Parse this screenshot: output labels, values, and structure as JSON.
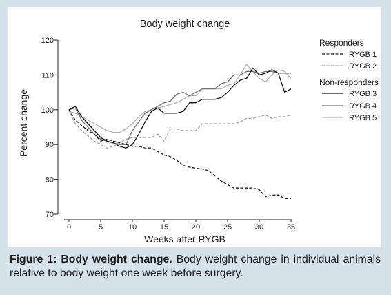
{
  "colors": {
    "page_background": "#d6e2ea",
    "panel_background": "#ffffff"
  },
  "figure": {
    "caption_label": "Figure 1: Body weight change.",
    "caption_text": "Body weight change in individual animals relative to body weight one week before surgery."
  },
  "chart_data": {
    "type": "line",
    "title": "Body weight change",
    "xlabel": "Weeks after RYGB",
    "ylabel": "Percent change",
    "xlim": [
      0,
      35
    ],
    "ylim": [
      70,
      120
    ],
    "x_ticks": [
      0,
      5,
      10,
      15,
      20,
      25,
      30,
      35
    ],
    "y_ticks": [
      70,
      80,
      90,
      100,
      110,
      120
    ],
    "grid": false,
    "legend_position": "right",
    "legend_groups": [
      {
        "title": "Responders",
        "members": [
          0,
          1
        ]
      },
      {
        "title": "Non-responders",
        "members": [
          2,
          3,
          4
        ]
      }
    ],
    "x": [
      0,
      1,
      2,
      3,
      4,
      5,
      6,
      7,
      8,
      9,
      10,
      11,
      12,
      13,
      14,
      15,
      16,
      17,
      18,
      19,
      20,
      21,
      22,
      23,
      24,
      25,
      26,
      27,
      28,
      29,
      30,
      31,
      32,
      33,
      34,
      35
    ],
    "series": [
      {
        "name": "RYGB 1",
        "color": "#1c1c1c",
        "dashed": true,
        "values": [
          100,
          97,
          95.5,
          94,
          93,
          91,
          91.5,
          91,
          90.5,
          90,
          89.5,
          89.5,
          89,
          89,
          88,
          87,
          86.5,
          85.5,
          84,
          83.5,
          83.2,
          83,
          82.5,
          81,
          79.5,
          78.5,
          77.5,
          77.5,
          77.5,
          77.5,
          77,
          75,
          75.5,
          75.5,
          74.5,
          74.5
        ]
      },
      {
        "name": "RYGB 2",
        "color": "#a0a0a0",
        "dashed": true,
        "values": [
          100,
          96,
          94,
          92.5,
          91,
          90,
          89,
          89.5,
          90.5,
          91.5,
          92,
          92,
          92,
          92,
          93,
          91,
          94.5,
          94.5,
          94,
          94,
          94,
          96,
          96,
          96,
          96,
          96,
          96,
          96.5,
          97.5,
          97.5,
          98,
          98.5,
          97.5,
          98,
          98,
          98.5
        ]
      },
      {
        "name": "RYGB 3",
        "color": "#111111",
        "dashed": false,
        "values": [
          100,
          101,
          98,
          96,
          94,
          92,
          91,
          90.5,
          89.5,
          89,
          90,
          93,
          96.5,
          99.5,
          100.5,
          99,
          99,
          99,
          99.5,
          102,
          102,
          103,
          103,
          103,
          103.5,
          105,
          107,
          108.5,
          109,
          112,
          110,
          110.5,
          111.5,
          110.5,
          105,
          106
        ]
      },
      {
        "name": "RYGB 4",
        "color": "#707070",
        "dashed": false,
        "values": [
          100,
          100.5,
          97,
          95,
          93,
          91.5,
          91,
          90.5,
          90,
          90,
          94,
          96.5,
          99,
          100,
          101,
          102,
          102.5,
          104.5,
          105,
          104,
          105,
          106,
          106,
          106,
          107.5,
          108,
          110,
          110,
          111,
          111,
          110.5,
          111,
          111,
          110.5,
          110.5,
          110.5
        ]
      },
      {
        "name": "RYGB 5",
        "color": "#b4b4b4",
        "dashed": false,
        "values": [
          99.5,
          99,
          98,
          97,
          96,
          95,
          94,
          93.5,
          93.5,
          94.5,
          96,
          98,
          99.5,
          100,
          100.5,
          101,
          101.5,
          102,
          103,
          104,
          104,
          106,
          106,
          106,
          106,
          107,
          107.5,
          110,
          113,
          111,
          109,
          108,
          110,
          111.5,
          111,
          109
        ]
      }
    ]
  }
}
